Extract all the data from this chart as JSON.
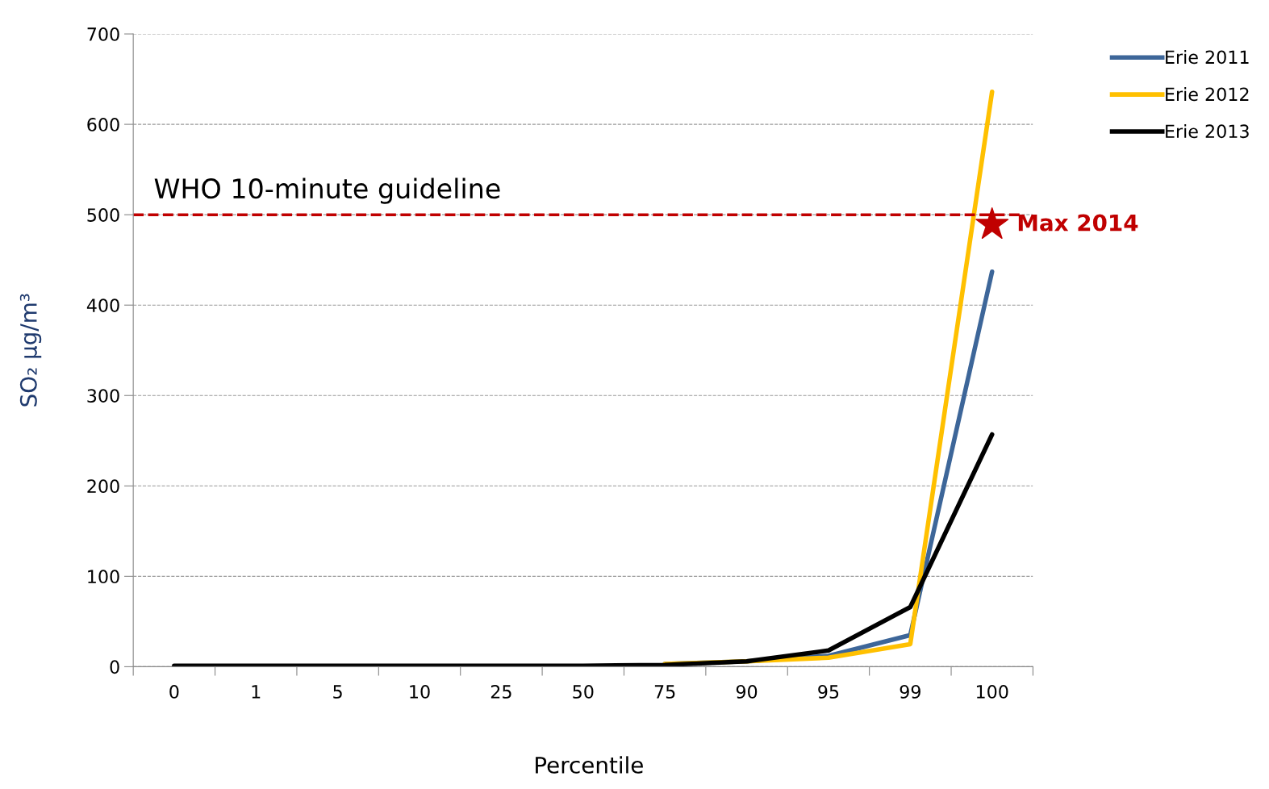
{
  "chart_data": {
    "type": "line",
    "ylabel": "SO₂ µg/m³",
    "xlabel": "Percentile",
    "categories": [
      "0",
      "1",
      "5",
      "10",
      "25",
      "50",
      "75",
      "90",
      "95",
      "99",
      "100"
    ],
    "series": [
      {
        "name": "Erie 2011",
        "color": "#3d6699",
        "values": [
          null,
          null,
          null,
          null,
          null,
          null,
          3,
          6,
          12,
          35,
          437
        ]
      },
      {
        "name": "Erie 2012",
        "color": "#ffc000",
        "values": [
          null,
          null,
          null,
          null,
          null,
          null,
          3,
          6,
          10,
          25,
          636
        ]
      },
      {
        "name": "Erie 2013",
        "color": "#000000",
        "values": [
          1,
          1,
          1,
          1,
          1,
          1,
          2,
          6,
          18,
          66,
          257
        ]
      },
      {
        "name": "Max 2014",
        "type": "scatter",
        "color": "#c00000",
        "marker": "star",
        "x": [
          "100"
        ],
        "values": [
          489
        ]
      }
    ],
    "ylim": [
      0,
      700
    ],
    "yticks": [
      0,
      100,
      200,
      300,
      400,
      500,
      600,
      700
    ],
    "grid": "y",
    "legend": "top right",
    "marker": "none",
    "line_style": "solid",
    "ref_lines": [
      {
        "axis": "y",
        "value": 500,
        "label": "WHO 10-minute guideline",
        "color": "#c00000",
        "line_style": "dashed"
      }
    ]
  }
}
